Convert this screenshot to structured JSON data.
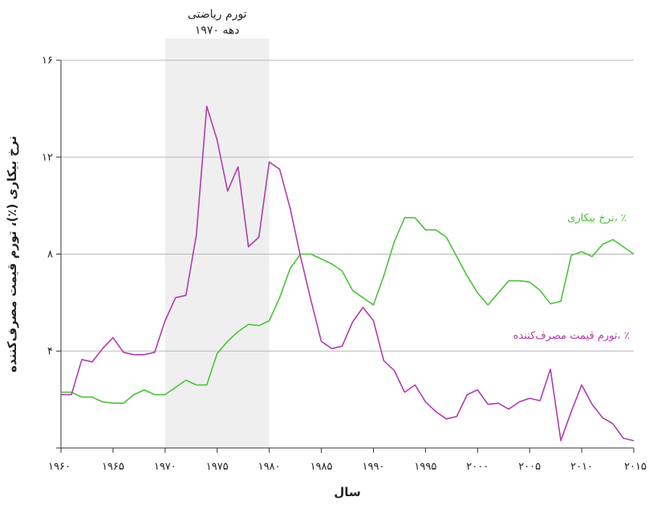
{
  "chart_data": {
    "type": "line",
    "xlabel": "سال",
    "ylabel": "نرخ بیکاری (٪)، تورم قیمت مصرف‌کننده",
    "xlim": [
      1960,
      2015
    ],
    "ylim": [
      0,
      16
    ],
    "x_ticks": [
      1960,
      1965,
      1970,
      1975,
      1980,
      1985,
      1990,
      1995,
      2000,
      2005,
      2010,
      2015
    ],
    "x_tick_labels": [
      "۱۹۶۰",
      "۱۹۶۵",
      "۱۹۷۰",
      "۱۹۷۵",
      "۱۹۸۰",
      "۱۹۸۵",
      "۱۹۹۰",
      "۱۹۹۵",
      "۲۰۰۰",
      "۲۰۰۵",
      "۲۰۱۰",
      "۲۰۱۵"
    ],
    "y_ticks": [
      0,
      4,
      8,
      12,
      16
    ],
    "y_tick_labels": [
      "",
      "۴",
      "۸",
      "۱۲",
      "۱۶"
    ],
    "grid": "horizontal",
    "shaded_region": {
      "x_start": 1970,
      "x_end": 1980,
      "label_line1": "تورم ریاضتی",
      "label_line2": "دهه ۱۹۷۰",
      "color": "#efefef"
    },
    "x": [
      1960,
      1961,
      1962,
      1963,
      1964,
      1965,
      1966,
      1967,
      1968,
      1969,
      1970,
      1971,
      1972,
      1973,
      1974,
      1975,
      1976,
      1977,
      1978,
      1979,
      1980,
      1981,
      1982,
      1983,
      1984,
      1985,
      1986,
      1987,
      1988,
      1989,
      1990,
      1991,
      1992,
      1993,
      1994,
      1995,
      1996,
      1997,
      1998,
      1999,
      2000,
      2001,
      2002,
      2003,
      2004,
      2005,
      2006,
      2007,
      2008,
      2009,
      2010,
      2011,
      2012,
      2013,
      2014,
      2015
    ],
    "series": [
      {
        "name": "نرخ بیکاری، ٪",
        "color": "#4cc23a",
        "values": [
          2.3,
          2.3,
          2.1,
          2.1,
          1.9,
          1.85,
          1.85,
          2.2,
          2.4,
          2.2,
          2.2,
          2.5,
          2.8,
          2.6,
          2.6,
          3.9,
          4.4,
          4.8,
          5.1,
          5.05,
          5.25,
          6.2,
          7.4,
          8.0,
          8.0,
          7.8,
          7.6,
          7.3,
          6.5,
          6.2,
          5.9,
          7.1,
          8.5,
          9.5,
          9.5,
          9.0,
          9.0,
          8.7,
          7.9,
          7.1,
          6.4,
          5.9,
          6.4,
          6.9,
          6.9,
          6.85,
          6.5,
          5.95,
          6.05,
          7.95,
          8.1,
          7.9,
          8.4,
          8.6,
          8.3,
          8.0
        ]
      },
      {
        "name": "تورم قیمت مصرف‌کننده، ٪",
        "color": "#b03cae",
        "values": [
          2.2,
          2.2,
          3.65,
          3.55,
          4.1,
          4.55,
          3.95,
          3.85,
          3.85,
          3.95,
          5.25,
          6.2,
          6.3,
          8.8,
          14.1,
          12.7,
          10.6,
          11.6,
          8.3,
          8.7,
          11.8,
          11.5,
          9.9,
          7.9,
          6.1,
          4.4,
          4.1,
          4.2,
          5.2,
          5.8,
          5.25,
          3.6,
          3.2,
          2.3,
          2.6,
          1.9,
          1.5,
          1.2,
          1.3,
          2.2,
          2.4,
          1.8,
          1.85,
          1.6,
          1.9,
          2.05,
          1.95,
          3.25,
          0.3,
          1.5,
          2.6,
          1.8,
          1.25,
          1.0,
          0.4,
          0.3
        ]
      }
    ],
    "series_labels": [
      {
        "series": 0,
        "text": "نرخ بیکاری، ٪",
        "x": 2014.3,
        "y": 9.35,
        "anchor": "end"
      },
      {
        "series": 1,
        "text": "تورم قیمت مصرف‌کننده، ٪",
        "x": 2014.6,
        "y": 4.5,
        "anchor": "end"
      }
    ]
  }
}
